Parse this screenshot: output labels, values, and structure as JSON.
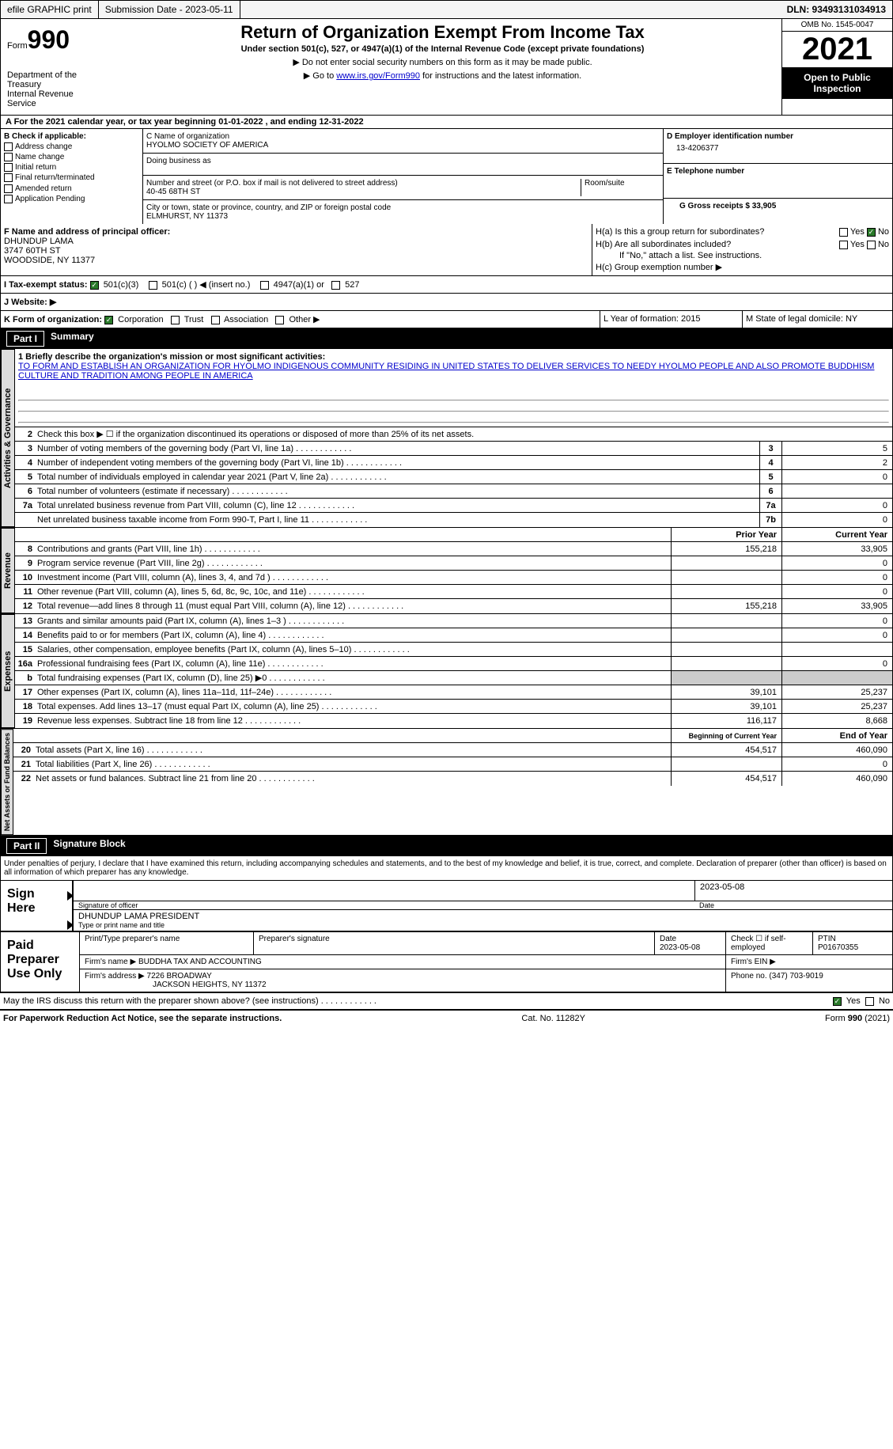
{
  "topbar": {
    "efile_label": "efile GRAPHIC print",
    "submission_label": "Submission Date - 2023-05-11",
    "dln_label": "DLN: 93493131034913"
  },
  "header": {
    "form_prefix": "Form",
    "form_number": "990",
    "title": "Return of Organization Exempt From Income Tax",
    "subtitle": "Under section 501(c), 527, or 4947(a)(1) of the Internal Revenue Code (except private foundations)",
    "note1": "▶ Do not enter social security numbers on this form as it may be made public.",
    "note2_prefix": "▶ Go to ",
    "note2_link": "www.irs.gov/Form990",
    "note2_suffix": " for instructions and the latest information.",
    "dept": "Department of the Treasury\nInternal Revenue Service",
    "omb": "OMB No. 1545-0047",
    "year": "2021",
    "open_public": "Open to Public Inspection"
  },
  "section_a": {
    "text": "A For the 2021 calendar year, or tax year beginning 01-01-2022    , and ending 12-31-2022"
  },
  "section_b": {
    "label": "B Check if applicable:",
    "opts": [
      "Address change",
      "Name change",
      "Initial return",
      "Final return/terminated",
      "Amended return",
      "Application Pending"
    ]
  },
  "section_c": {
    "name_label": "C Name of organization",
    "name": "HYOLMO SOCIETY OF AMERICA",
    "dba_label": "Doing business as",
    "addr_label": "Number and street (or P.O. box if mail is not delivered to street address)",
    "addr": "40-45 68TH ST",
    "room_label": "Room/suite",
    "city_label": "City or town, state or province, country, and ZIP or foreign postal code",
    "city": "ELMHURST, NY  11373"
  },
  "section_d": {
    "ein_label": "D Employer identification number",
    "ein": "13-4206377",
    "phone_label": "E Telephone number",
    "gross_label": "G Gross receipts $ 33,905"
  },
  "section_f": {
    "label": "F Name and address of principal officer:",
    "name": "DHUNDUP LAMA",
    "addr1": "3747 60TH ST",
    "addr2": "WOODSIDE, NY  11377"
  },
  "section_h": {
    "ha_label": "H(a)  Is this a group return for subordinates?",
    "hb_label": "H(b)  Are all subordinates included?",
    "hb_note": "If \"No,\" attach a list. See instructions.",
    "hc_label": "H(c)  Group exemption number ▶",
    "yes": "Yes",
    "no": "No"
  },
  "section_i": {
    "label": "I   Tax-exempt status:",
    "opt1": "501(c)(3)",
    "opt2": "501(c) (  ) ◀ (insert no.)",
    "opt3": "4947(a)(1) or",
    "opt4": "527"
  },
  "section_j": {
    "label": "J   Website: ▶"
  },
  "section_k": {
    "label": "K Form of organization:",
    "opts": [
      "Corporation",
      "Trust",
      "Association",
      "Other ▶"
    ],
    "l_label": "L Year of formation: 2015",
    "m_label": "M State of legal domicile: NY"
  },
  "part1": {
    "header": "Part I",
    "title": "Summary",
    "line1_label": "1  Briefly describe the organization's mission or most significant activities:",
    "mission": "TO FORM AND ESTABLISH AN ORGANIZATION FOR HYOLMO INDIGENOUS COMMUNITY RESIDING IN UNITED STATES TO DELIVER SERVICES TO NEEDY HYOLMO PEOPLE AND ALSO PROMOTE BUDDHISM CULTURE AND TRADITION AMONG PEOPLE IN AMERICA",
    "line2": "Check this box ▶ ☐  if the organization discontinued its operations or disposed of more than 25% of its net assets.",
    "lines": [
      {
        "n": "3",
        "t": "Number of voting members of the governing body (Part VI, line 1a)",
        "box": "3",
        "v": "5"
      },
      {
        "n": "4",
        "t": "Number of independent voting members of the governing body (Part VI, line 1b)",
        "box": "4",
        "v": "2"
      },
      {
        "n": "5",
        "t": "Total number of individuals employed in calendar year 2021 (Part V, line 2a)",
        "box": "5",
        "v": "0"
      },
      {
        "n": "6",
        "t": "Total number of volunteers (estimate if necessary)",
        "box": "6",
        "v": ""
      },
      {
        "n": "7a",
        "t": "Total unrelated business revenue from Part VIII, column (C), line 12",
        "box": "7a",
        "v": "0"
      },
      {
        "n": "",
        "t": "Net unrelated business taxable income from Form 990-T, Part I, line 11",
        "box": "7b",
        "v": "0"
      }
    ],
    "col_prior": "Prior Year",
    "col_current": "Current Year",
    "revenue": [
      {
        "n": "8",
        "t": "Contributions and grants (Part VIII, line 1h)",
        "p": "155,218",
        "c": "33,905"
      },
      {
        "n": "9",
        "t": "Program service revenue (Part VIII, line 2g)",
        "p": "",
        "c": "0"
      },
      {
        "n": "10",
        "t": "Investment income (Part VIII, column (A), lines 3, 4, and 7d )",
        "p": "",
        "c": "0"
      },
      {
        "n": "11",
        "t": "Other revenue (Part VIII, column (A), lines 5, 6d, 8c, 9c, 10c, and 11e)",
        "p": "",
        "c": "0"
      },
      {
        "n": "12",
        "t": "Total revenue—add lines 8 through 11 (must equal Part VIII, column (A), line 12)",
        "p": "155,218",
        "c": "33,905"
      }
    ],
    "expenses": [
      {
        "n": "13",
        "t": "Grants and similar amounts paid (Part IX, column (A), lines 1–3 )",
        "p": "",
        "c": "0"
      },
      {
        "n": "14",
        "t": "Benefits paid to or for members (Part IX, column (A), line 4)",
        "p": "",
        "c": "0"
      },
      {
        "n": "15",
        "t": "Salaries, other compensation, employee benefits (Part IX, column (A), lines 5–10)",
        "p": "",
        "c": ""
      },
      {
        "n": "16a",
        "t": "Professional fundraising fees (Part IX, column (A), line 11e)",
        "p": "",
        "c": "0"
      },
      {
        "n": "b",
        "t": "Total fundraising expenses (Part IX, column (D), line 25) ▶0",
        "p": "shaded",
        "c": "shaded"
      },
      {
        "n": "17",
        "t": "Other expenses (Part IX, column (A), lines 11a–11d, 11f–24e)",
        "p": "39,101",
        "c": "25,237"
      },
      {
        "n": "18",
        "t": "Total expenses. Add lines 13–17 (must equal Part IX, column (A), line 25)",
        "p": "39,101",
        "c": "25,237"
      },
      {
        "n": "19",
        "t": "Revenue less expenses. Subtract line 18 from line 12",
        "p": "116,117",
        "c": "8,668"
      }
    ],
    "col_begin": "Beginning of Current Year",
    "col_end": "End of Year",
    "netassets": [
      {
        "n": "20",
        "t": "Total assets (Part X, line 16)",
        "p": "454,517",
        "c": "460,090"
      },
      {
        "n": "21",
        "t": "Total liabilities (Part X, line 26)",
        "p": "",
        "c": "0"
      },
      {
        "n": "22",
        "t": "Net assets or fund balances. Subtract line 21 from line 20",
        "p": "454,517",
        "c": "460,090"
      }
    ],
    "vtabs": [
      "Activities & Governance",
      "Revenue",
      "Expenses",
      "Net Assets or Fund Balances"
    ]
  },
  "part2": {
    "header": "Part II",
    "title": "Signature Block",
    "penalty": "Under penalties of perjury, I declare that I have examined this return, including accompanying schedules and statements, and to the best of my knowledge and belief, it is true, correct, and complete. Declaration of preparer (other than officer) is based on all information of which preparer has any knowledge.",
    "sign_here": "Sign Here",
    "sig_officer": "Signature of officer",
    "sig_date": "2023-05-08",
    "date_label": "Date",
    "officer_name": "DHUNDUP LAMA  PRESIDENT",
    "type_label": "Type or print name and title"
  },
  "preparer": {
    "label": "Paid Preparer Use Only",
    "print_label": "Print/Type preparer's name",
    "sig_label": "Preparer's signature",
    "date_label": "Date",
    "date": "2023-05-08",
    "check_label": "Check ☐ if self-employed",
    "ptin_label": "PTIN",
    "ptin": "P01670355",
    "firm_name_label": "Firm's name    ▶",
    "firm_name": "BUDDHA TAX AND ACCOUNTING",
    "firm_ein_label": "Firm's EIN ▶",
    "firm_addr_label": "Firm's address ▶",
    "firm_addr": "7226 BROADWAY",
    "firm_addr2": "JACKSON HEIGHTS, NY  11372",
    "phone_label": "Phone no. (347) 703-9019"
  },
  "footer": {
    "discuss": "May the IRS discuss this return with the preparer shown above? (see instructions)",
    "yes": "Yes",
    "no": "No",
    "paperwork": "For Paperwork Reduction Act Notice, see the separate instructions.",
    "cat": "Cat. No. 11282Y",
    "form": "Form 990 (2021)"
  }
}
